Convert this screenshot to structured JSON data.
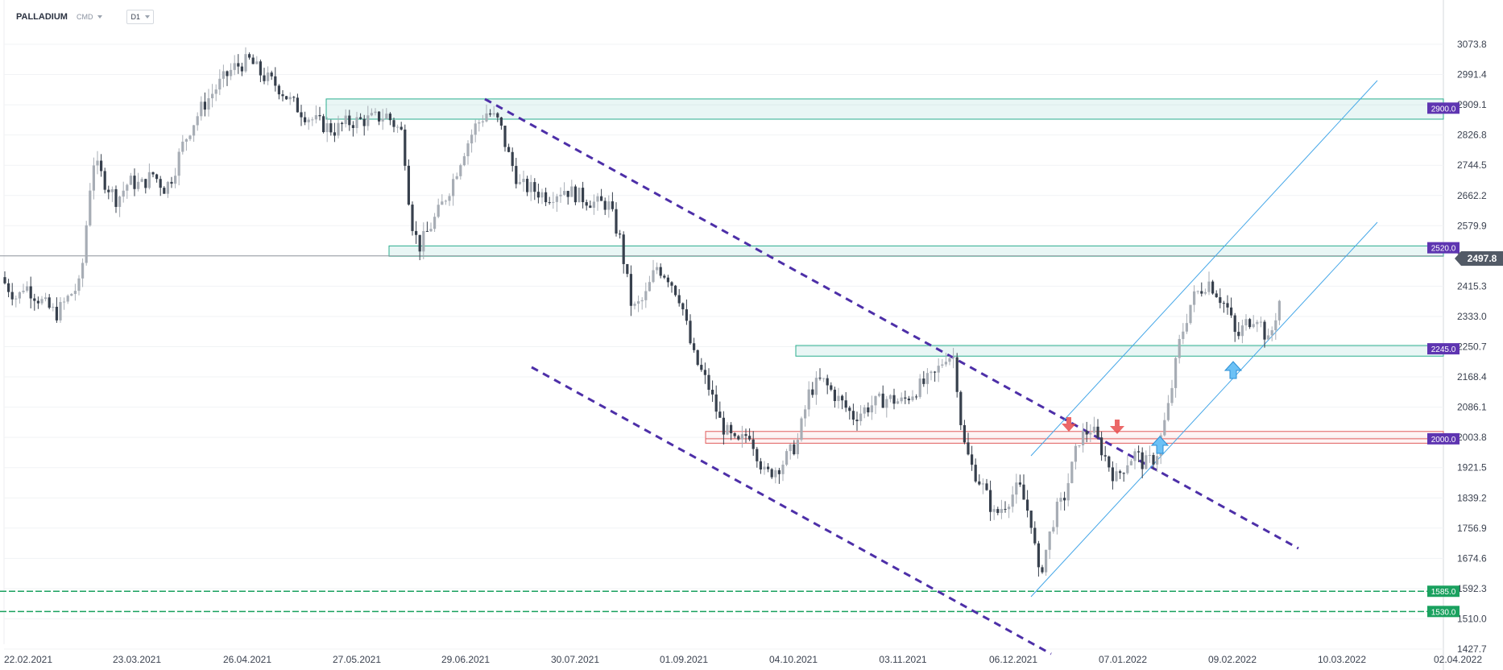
{
  "header": {
    "symbol": "PALLADIUM",
    "instrument_type": "CMD",
    "timeframe": "D1"
  },
  "price_tag": "2497.8",
  "chart_data": {
    "type": "candlestick",
    "title": "PALLADIUM",
    "y_ticks": [
      "3073.8",
      "2991.4",
      "2909.1",
      "2826.8",
      "2744.5",
      "2662.2",
      "2579.9",
      "2497.8",
      "2415.3",
      "2333.0",
      "2250.7",
      "2168.4",
      "2086.1",
      "2003.8",
      "1921.5",
      "1839.2",
      "1756.9",
      "1674.6",
      "1592.3",
      "1510.0",
      "1427.7"
    ],
    "x_ticks": [
      "22.02.2021",
      "23.03.2021",
      "26.04.2021",
      "27.05.2021",
      "29.06.2021",
      "30.07.2021",
      "01.09.2021",
      "04.10.2021",
      "03.11.2021",
      "06.12.2021",
      "07.01.2022",
      "09.02.2022",
      "10.03.2022",
      "02.04.2022"
    ],
    "ylim": [
      1411,
      3120
    ],
    "last_price": 2497.8,
    "levels": [
      {
        "label": "2900.0",
        "value": 2900,
        "zone": [
          2870,
          2925
        ],
        "color": "#5e35b1"
      },
      {
        "label": "2520.0",
        "value": 2520,
        "zone": [
          2497,
          2525
        ],
        "color": "#5e35b1"
      },
      {
        "label": "2245.0",
        "value": 2245,
        "zone": [
          2225,
          2254
        ],
        "color": "#5e35b1"
      },
      {
        "label": "2000.0",
        "value": 2000,
        "zone": [
          1988,
          2020
        ],
        "color": "#5e35b1"
      },
      {
        "label": "1585.0",
        "value": 1585,
        "color": "#1aa15f"
      },
      {
        "label": "1530.0",
        "value": 1530,
        "color": "#1aa15f"
      }
    ],
    "candle_colors": {
      "up": "#a7adb5",
      "down": "#37404d"
    }
  }
}
